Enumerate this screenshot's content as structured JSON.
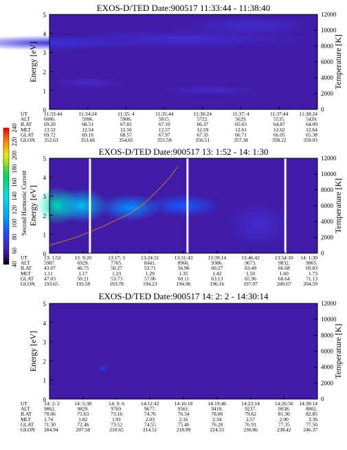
{
  "chart_data": [
    {
      "type": "heatmap",
      "title": "EXOS-D/TED   Date:900517   11:33:44 - 11:38:40",
      "ylabel": "Energy [eV]",
      "ylabel_right": "Temperature [K]",
      "ylim": [
        0,
        5
      ],
      "y_ticks": [
        "0",
        "1",
        "2",
        "3",
        "4",
        "5"
      ],
      "ylim_right": [
        0,
        12000
      ],
      "y_ticks_right": [
        "0",
        "2000",
        "4000",
        "6000",
        "8000",
        "10000",
        "12000"
      ],
      "background_level": 60,
      "blobs": [
        {
          "t": 0.0,
          "e": 3.5,
          "dt": 0.35,
          "de": 0.4,
          "level": 75
        },
        {
          "t": 0.5,
          "e": 3.7,
          "dt": 0.5,
          "de": 0.5,
          "level": 72
        },
        {
          "t": 0.15,
          "e": 1.4,
          "dt": 0.15,
          "de": 0.3,
          "level": 70
        },
        {
          "t": 0.6,
          "e": 1.0,
          "dt": 0.2,
          "de": 0.3,
          "level": 70
        },
        {
          "t": 0.75,
          "e": 4.4,
          "dt": 0.25,
          "de": 0.5,
          "level": 72
        }
      ],
      "temperature_trace": [],
      "gaps": [],
      "ephemeris": {
        "labels": [
          "UT",
          "ALT",
          "ILAT",
          "MLT",
          "GLAT",
          "GLON"
        ],
        "columns": [
          [
            "11:33:44",
            "6086.",
            "69.20",
            "13.52",
            "69.72",
            "352.63"
          ],
          [
            "11:34:24",
            "5996.",
            "68.51",
            "12.54",
            "69.16",
            "353.66"
          ],
          [
            "11:35: 4",
            "5906.",
            "67.81",
            "12.56",
            "68.57",
            "354.65"
          ],
          [
            "11:35:44",
            "5815.",
            "67.10",
            "12.57",
            "67.97",
            "355.59"
          ],
          [
            "11:36:24",
            "5722.",
            "66.37",
            "12.59",
            "67.35",
            "356.51"
          ],
          [
            "11:37: 4",
            "5629.",
            "65.63",
            "12.61",
            "66.71",
            "357.38"
          ],
          [
            "11:37:44",
            "5535.",
            "64.87",
            "12.62",
            "66.05",
            "358.22"
          ],
          [
            "11:38:24",
            "5439.",
            "64.09",
            "12.64",
            "65.38",
            "359.03"
          ]
        ]
      }
    },
    {
      "type": "heatmap",
      "title": "EXOS-D/TED   Date:900517   13: 1:52 - 14: 1:30",
      "ylabel": "Energy [eV]",
      "ylabel_right": "Temperature [K]",
      "ylim": [
        0,
        5
      ],
      "y_ticks": [
        "0",
        "1",
        "2",
        "3",
        "4",
        "5"
      ],
      "ylim_right": [
        0,
        12000
      ],
      "y_ticks_right": [
        "0",
        "2000",
        "4000",
        "6000",
        "8000",
        "10000",
        "12000"
      ],
      "background_level": 60,
      "blobs": [
        {
          "t": 0.03,
          "e": 2.5,
          "dt": 0.08,
          "de": 1.0,
          "level": 150
        },
        {
          "t": 0.12,
          "e": 2.5,
          "dt": 0.1,
          "de": 0.9,
          "level": 125
        },
        {
          "t": 0.3,
          "e": 2.4,
          "dt": 0.12,
          "de": 0.7,
          "level": 105
        },
        {
          "t": 0.5,
          "e": 2.5,
          "dt": 0.14,
          "de": 0.6,
          "level": 90
        },
        {
          "t": 0.78,
          "e": 1.5,
          "dt": 0.12,
          "de": 1.2,
          "level": 72
        }
      ],
      "temperature_trace": [
        [
          0.0,
          1000
        ],
        [
          0.05,
          1500
        ],
        [
          0.1,
          2000
        ],
        [
          0.15,
          2700
        ],
        [
          0.2,
          3400
        ],
        [
          0.25,
          4200
        ],
        [
          0.3,
          5000
        ],
        [
          0.35,
          6200
        ],
        [
          0.4,
          7800
        ],
        [
          0.45,
          9600
        ],
        [
          0.48,
          11000
        ]
      ],
      "gaps": [
        0.151,
        0.515,
        0.88
      ],
      "colorbar": {
        "label": "Second Harmonic Current",
        "min": 40,
        "max": 240,
        "ticks": [
          "40",
          "60",
          "80",
          "100",
          "120",
          "140",
          "160",
          "180",
          "200",
          "220",
          "240"
        ]
      },
      "ephemeris": {
        "labels": [
          "UT",
          "ALT",
          "ILAT",
          "MLT",
          "GLAT",
          "GLON"
        ],
        "columns": [
          [
            "13: 1:52",
            "5987.",
            "43.67",
            "1.11",
            "47.03",
            "193.65"
          ],
          [
            "13: 9:20",
            "6929.",
            "46.75",
            "1.17",
            "50.21",
            "193.58"
          ],
          [
            "13:17: 3",
            "7765.",
            "50.27",
            "1.23",
            "53.73",
            "193.78"
          ],
          [
            "13:24:31",
            "8441.",
            "53.71",
            "1.29",
            "57.06",
            "194.23"
          ],
          [
            "13:31:43",
            "8966.",
            "56.96",
            "1.35",
            "60.11",
            "194.96"
          ],
          [
            "13:39:14",
            "9386.",
            "60.27",
            "1.42",
            "63.13",
            "196.16"
          ],
          [
            "13:46:42",
            "9673.",
            "63.49",
            "1.50",
            "65.96",
            "197.97"
          ],
          [
            "13:54:10",
            "9832.",
            "66.68",
            "1.60",
            "68.64",
            "200.67"
          ],
          [
            "14: 1:30",
            "9865.",
            "69.83",
            "1.73",
            "71.13",
            "204.59"
          ]
        ]
      }
    },
    {
      "type": "heatmap",
      "title": "EXOS-D/TED   Date:900517   14: 2: 2 - 14:30:14",
      "ylabel": "Energy [eV]",
      "ylabel_right": "Temperature [K]",
      "ylim": [
        0,
        5
      ],
      "y_ticks": [
        "0",
        "1",
        "2",
        "3",
        "4",
        "5"
      ],
      "ylim_right": [
        0,
        12000
      ],
      "y_ticks_right": [
        "0",
        "2000",
        "4000",
        "6000",
        "8000",
        "10000",
        "12000"
      ],
      "background_level": 60,
      "blobs": [
        {
          "t": 0.2,
          "e": 1.6,
          "dt": 0.02,
          "de": 0.2,
          "level": 80
        }
      ],
      "temperature_trace": [],
      "gaps": [],
      "ephemeris": {
        "labels": [
          "UT",
          "ALT",
          "ILAT",
          "MLT",
          "GLAT",
          "GLON"
        ],
        "columns": [
          [
            "14: 2: 2",
            "9862.",
            "70.06",
            "1.74",
            "71.30",
            "204.94"
          ],
          [
            "14: 5:38",
            "9829.",
            "71.63",
            "1.82",
            "72.46",
            "207.58"
          ],
          [
            "14: 9: 6",
            "9769.",
            "73.16",
            "1.91",
            "73.52",
            "210.65"
          ],
          [
            "14:12:42",
            "9677.",
            "74.76",
            "2.03",
            "74.55",
            "214.51"
          ],
          [
            "14:16:10",
            "9561.",
            "76.34",
            "2.16",
            "75.46",
            "218.99"
          ],
          [
            "14:19:46",
            "9410.",
            "78.00",
            "2.34",
            "76.28",
            "224.55"
          ],
          [
            "14:23:14",
            "9237.",
            "79.62",
            "2.57",
            "76.91",
            "230.86"
          ],
          [
            "14:26:50",
            "9038.",
            "81.30",
            "2.90",
            "77.35",
            "238.42"
          ],
          [
            "14:30:14",
            "8802.",
            "82.85",
            "3.36",
            "77.50",
            "246.37"
          ]
        ]
      }
    }
  ]
}
